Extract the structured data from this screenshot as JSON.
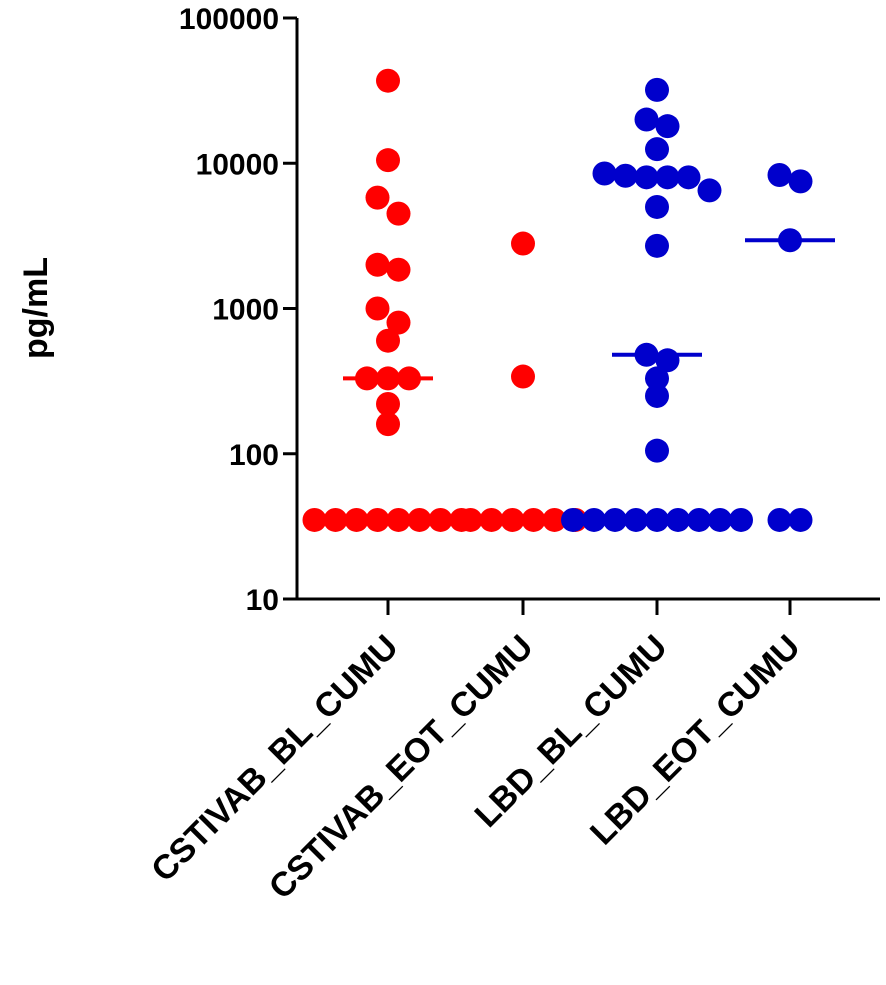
{
  "chart_data": {
    "type": "scatter",
    "ylabel": "pg/mL",
    "yscale": "log",
    "ylim": [
      10,
      100000
    ],
    "yticks": [
      "10",
      "100",
      "1000",
      "10000",
      "100000"
    ],
    "categories": [
      "CSTIVAB_BL_CUMU",
      "CSTIVAB_EOT_CUMU",
      "LBD_BL_CUMU",
      "LBD_EOT_CUMU"
    ],
    "groups": [
      {
        "category": "CSTIVAB_BL_CUMU",
        "color": "#ff0000",
        "median": 330,
        "points": [
          37000,
          10500,
          5800,
          4500,
          2000,
          1850,
          1000,
          800,
          600,
          330,
          330,
          330,
          220,
          160,
          35,
          35,
          35,
          35,
          35,
          35,
          35,
          35
        ]
      },
      {
        "category": "CSTIVAB_EOT_CUMU",
        "color": "#ff0000",
        "median": null,
        "points": [
          2800,
          340,
          35,
          35,
          35,
          35,
          35,
          35
        ]
      },
      {
        "category": "LBD_BL_CUMU",
        "color": "#0000cc",
        "median": 480,
        "points": [
          32000,
          20000,
          18000,
          12500,
          8500,
          8200,
          8000,
          8000,
          8000,
          6500,
          5000,
          2700,
          480,
          440,
          330,
          250,
          105,
          35,
          35,
          35,
          35,
          35,
          35,
          35,
          35,
          35
        ]
      },
      {
        "category": "LBD_EOT_CUMU",
        "color": "#0000cc",
        "median": 2950,
        "points": [
          8300,
          7500,
          2950,
          35,
          35
        ]
      }
    ]
  }
}
